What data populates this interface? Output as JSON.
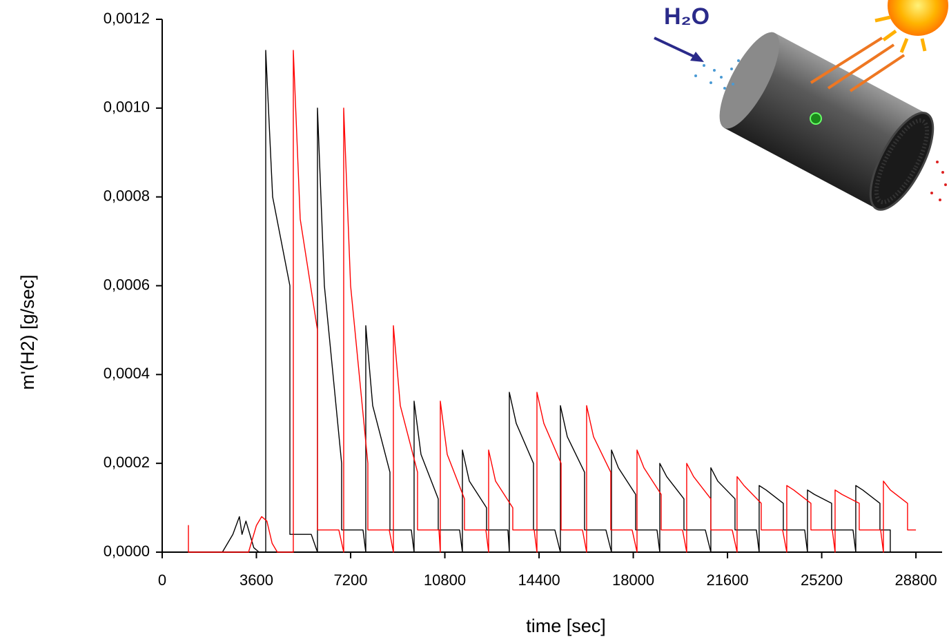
{
  "chart_data": {
    "type": "line",
    "x_label": "time [sec]",
    "y_label": "m'(H2) [g/sec]",
    "annotation": "H₂O",
    "xlim": [
      0,
      29800
    ],
    "ylim": [
      0,
      0.0012
    ],
    "xticks": [
      0,
      3600,
      7200,
      10800,
      14400,
      18000,
      21600,
      25200,
      28800
    ],
    "yticks": [
      {
        "value": 0,
        "label": "0,0000"
      },
      {
        "value": 0.0002,
        "label": "0,0002"
      },
      {
        "value": 0.0004,
        "label": "0,0004"
      },
      {
        "value": 0.0006,
        "label": "0,0006"
      },
      {
        "value": 0.0008,
        "label": "0,0008"
      },
      {
        "value": 0.001,
        "label": "0,0010"
      },
      {
        "value": 0.0012,
        "label": "0,0012"
      }
    ],
    "grid": false,
    "series": [
      {
        "color": "#000000",
        "x": [
          2300,
          2700,
          2950,
          3050,
          3200,
          3500,
          3700,
          3956,
          3956,
          4220,
          4879,
          4879,
          5696,
          5933,
          5933,
          6197,
          6856,
          6856,
          7673,
          7779,
          7779,
          8043,
          8702,
          8702,
          9519,
          9625,
          9625,
          9889,
          10548,
          10548,
          11365,
          11471,
          11471,
          11735,
          12394,
          12394,
          13211,
          13264,
          13264,
          13528,
          14187,
          14187,
          15004,
          15215,
          15215,
          15479,
          16138,
          16138,
          16955,
          17167,
          17167,
          17431,
          18090,
          18090,
          18907,
          19013,
          19013,
          19277,
          19936,
          19936,
          20753,
          20964,
          20964,
          21228,
          21887,
          21887,
          22704,
          22810,
          22810,
          23074,
          23733,
          23733,
          24550,
          24656,
          24656,
          24920,
          25579,
          25579,
          26396,
          26502,
          26502,
          26766,
          27425,
          27425,
          27820,
          27820
        ],
        "values": [
          0,
          4e-05,
          8e-05,
          4e-05,
          7e-05,
          1e-05,
          0,
          0,
          0.00113,
          0.0008,
          0.0006,
          4e-05,
          4e-05,
          0,
          0.001,
          0.0006,
          0.0002,
          5e-05,
          5e-05,
          0,
          0.00051,
          0.00033,
          0.00018,
          5e-05,
          5e-05,
          0,
          0.00034,
          0.00022,
          0.00012,
          5e-05,
          5e-05,
          0,
          0.00023,
          0.00016,
          0.0001,
          5e-05,
          5e-05,
          0,
          0.00036,
          0.00029,
          0.0002,
          5e-05,
          5e-05,
          0,
          0.00033,
          0.00026,
          0.00018,
          5e-05,
          5e-05,
          0,
          0.00023,
          0.00019,
          0.00013,
          5e-05,
          5e-05,
          0,
          0.0002,
          0.00017,
          0.00012,
          5e-05,
          5e-05,
          0,
          0.00019,
          0.00016,
          0.00012,
          5e-05,
          5e-05,
          0,
          0.00015,
          0.00014,
          0.00011,
          5e-05,
          5e-05,
          0,
          0.00014,
          0.00013,
          0.00011,
          5e-05,
          5e-05,
          0,
          0.00015,
          0.00014,
          0.00011,
          5e-05,
          5e-05,
          0
        ]
      },
      {
        "color": "#ff0000",
        "x": [
          1002,
          1002,
          1002,
          3300,
          3600,
          3800,
          4000,
          4200,
          4400,
          5010,
          5010,
          5274,
          5933,
          5933,
          6750,
          6935,
          6935,
          7199,
          7858,
          7858,
          8675,
          8834,
          8834,
          9098,
          9757,
          9757,
          10574,
          10627,
          10627,
          10891,
          11550,
          11550,
          12367,
          12473,
          12473,
          12737,
          13396,
          13396,
          14213,
          14319,
          14319,
          14583,
          15242,
          15242,
          16059,
          16217,
          16217,
          16481,
          17140,
          17140,
          17957,
          18143,
          18143,
          18407,
          19066,
          19066,
          19883,
          20041,
          20041,
          20305,
          20964,
          20964,
          21781,
          21966,
          21966,
          22230,
          22889,
          22889,
          23706,
          23865,
          23865,
          24129,
          24788,
          24788,
          25605,
          25711,
          25711,
          25975,
          26634,
          26634,
          27451,
          27557,
          27557,
          27821,
          28480,
          28480,
          28800
        ],
        "values": [
          0,
          6e-05,
          0,
          0,
          6e-05,
          8e-05,
          7e-05,
          2e-05,
          0,
          0,
          0.00113,
          0.00075,
          0.0005,
          5e-05,
          5e-05,
          0,
          0.001,
          0.0006,
          0.0002,
          5e-05,
          5e-05,
          0,
          0.00051,
          0.00033,
          0.00018,
          5e-05,
          5e-05,
          0,
          0.00034,
          0.00022,
          0.00012,
          5e-05,
          5e-05,
          0,
          0.00023,
          0.00016,
          0.0001,
          5e-05,
          5e-05,
          0,
          0.00036,
          0.00029,
          0.0002,
          5e-05,
          5e-05,
          0,
          0.00033,
          0.00026,
          0.00018,
          5e-05,
          5e-05,
          0,
          0.00023,
          0.00019,
          0.00013,
          5e-05,
          5e-05,
          0,
          0.0002,
          0.00017,
          0.00012,
          5e-05,
          5e-05,
          0,
          0.00017,
          0.00015,
          0.00011,
          5e-05,
          5e-05,
          0,
          0.00015,
          0.00014,
          0.00011,
          5e-05,
          5e-05,
          0,
          0.00014,
          0.00013,
          0.00011,
          5e-05,
          5e-05,
          0,
          0.00016,
          0.00014,
          0.00011,
          5e-05,
          5e-05
        ]
      }
    ]
  }
}
